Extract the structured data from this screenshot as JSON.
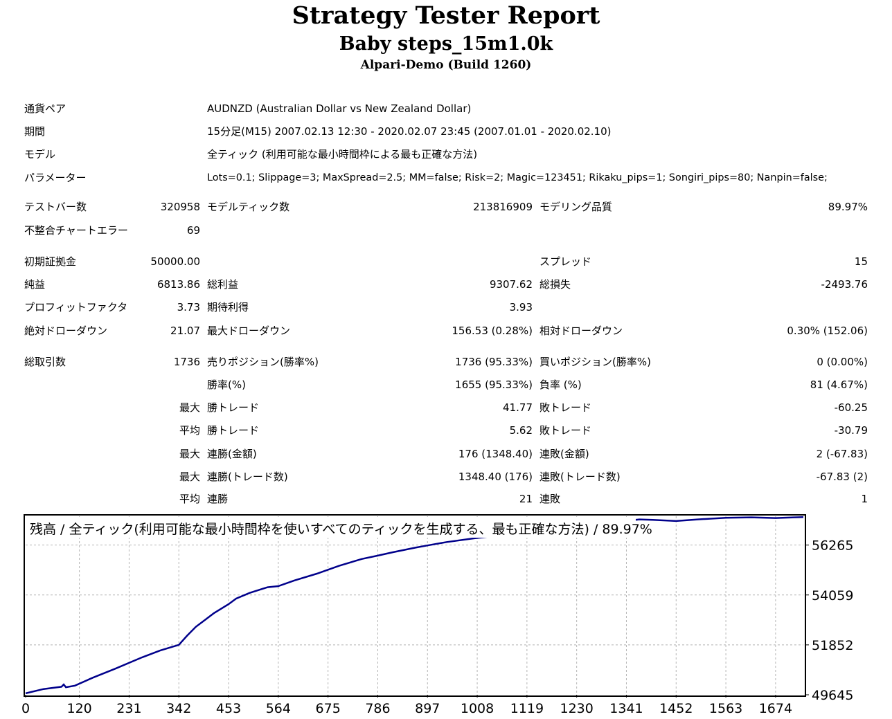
{
  "report": {
    "title": "Strategy Tester Report",
    "ea_name": "Baby steps_15m1.0k",
    "server": "Alpari-Demo (Build 1260)"
  },
  "info": {
    "symbol_label": "通貨ペア",
    "symbol_value": "AUDNZD (Australian Dollar vs New Zealand Dollar)",
    "period_label": "期間",
    "period_value": "15分足(M15) 2007.02.13 12:30 - 2020.02.07 23:45 (2007.01.01 - 2020.02.10)",
    "model_label": "モデル",
    "model_value": "全ティック (利用可能な最小時間枠による最も正確な方法)",
    "params_label": "パラメーター",
    "params_value": "Lots=0.1; Slippage=3; MaxSpread=2.5; MM=false; Risk=2; Magic=123451; Rikaku_pips=1; Songiri_pips=80; Nanpin=false;"
  },
  "bars": {
    "test_bars_label": "テストバー数",
    "test_bars_value": "320958",
    "model_ticks_label": "モデルティック数",
    "model_ticks_value": "213816909",
    "model_quality_label": "モデリング品質",
    "model_quality_value": "89.97%",
    "mismatch_label": "不整合チャートエラー",
    "mismatch_value": "69"
  },
  "results": {
    "deposit_label": "初期証拠金",
    "deposit_value": "50000.00",
    "spread_label": "スプレッド",
    "spread_value": "15",
    "net_label": "純益",
    "net_value": "6813.86",
    "gross_profit_label": "総利益",
    "gross_profit_value": "9307.62",
    "gross_loss_label": "総損失",
    "gross_loss_value": "-2493.76",
    "pf_label": "プロフィットファクタ",
    "pf_value": "3.73",
    "expected_label": "期待利得",
    "expected_value": "3.93",
    "abs_dd_label": "絶対ドローダウン",
    "abs_dd_value": "21.07",
    "max_dd_label": "最大ドローダウン",
    "max_dd_value": "156.53 (0.28%)",
    "rel_dd_label": "相対ドローダウン",
    "rel_dd_value": "0.30% (152.06)"
  },
  "trades": {
    "total_label": "総取引数",
    "total_value": "1736",
    "short_label": "売りポジション(勝率%)",
    "short_value": "1736 (95.33%)",
    "long_label": "買いポジション(勝率%)",
    "long_value": "0 (0.00%)",
    "win_label": "勝率(%)",
    "win_value": "1655 (95.33%)",
    "loss_label": "負率 (%)",
    "loss_value": "81 (4.67%)",
    "largest_prefix": "最大",
    "largest_win_label": "勝トレード",
    "largest_win_value": "41.77",
    "largest_loss_label": "敗トレード",
    "largest_loss_value": "-60.25",
    "average_prefix": "平均",
    "avg_win_label": "勝トレード",
    "avg_win_value": "5.62",
    "avg_loss_label": "敗トレード",
    "avg_loss_value": "-30.79",
    "max_prefix_1": "最大",
    "max_consec_win_label": "連勝(金額)",
    "max_consec_win_value": "176 (1348.40)",
    "max_consec_loss_label": "連敗(金額)",
    "max_consec_loss_value": "2 (-67.83)",
    "max_prefix_2": "最大",
    "max_consec_win_trades_label": "連勝(トレード数)",
    "max_consec_win_trades_value": "1348.40 (176)",
    "max_consec_loss_trades_label": "連敗(トレード数)",
    "max_consec_loss_trades_value": "-67.83 (2)",
    "avg_prefix_2": "平均",
    "avg_consec_win_label": "連勝",
    "avg_consec_win_value": "21",
    "avg_consec_loss_label": "連敗",
    "avg_consec_loss_value": "1"
  },
  "chart_data": {
    "type": "line",
    "title": "残高 / 全ティック(利用可能な最小時間枠を使いすべてのティックを生成する、最も正確な方法) / 89.97%",
    "xlabel": "",
    "ylabel": "",
    "x_ticks": [
      0,
      120,
      231,
      342,
      453,
      564,
      675,
      786,
      897,
      1008,
      1119,
      1230,
      1341,
      1452,
      1563,
      1674
    ],
    "y_ticks": [
      49645,
      51852,
      54059,
      56265
    ],
    "xlim": [
      0,
      1736
    ],
    "ylim": [
      49645,
      57540
    ],
    "grid": true,
    "line_color": "#00008b",
    "series": [
      {
        "x": [
          0,
          40,
          80,
          85,
          90,
          110,
          150,
          200,
          260,
          300,
          342,
          360,
          380,
          400,
          420,
          453,
          470,
          500,
          540,
          564,
          600,
          650,
          700,
          750,
          786,
          820,
          870,
          897,
          940,
          1000,
          1060,
          1119,
          1180,
          1230,
          1280,
          1320,
          1341,
          1352,
          1370,
          1400,
          1452,
          1500,
          1563,
          1620,
          1674,
          1700,
          1736
        ],
        "y": [
          49710,
          49900,
          50000,
          50100,
          49980,
          50050,
          50400,
          50800,
          51300,
          51600,
          51850,
          52250,
          52650,
          52950,
          53250,
          53650,
          53900,
          54150,
          54400,
          54450,
          54700,
          55000,
          55350,
          55650,
          55800,
          55950,
          56150,
          56250,
          56400,
          56560,
          56700,
          56820,
          56950,
          57080,
          57160,
          57250,
          57300,
          57360,
          57400,
          57380,
          57330,
          57400,
          57470,
          57490,
          57460,
          57480,
          57500
        ]
      }
    ]
  }
}
